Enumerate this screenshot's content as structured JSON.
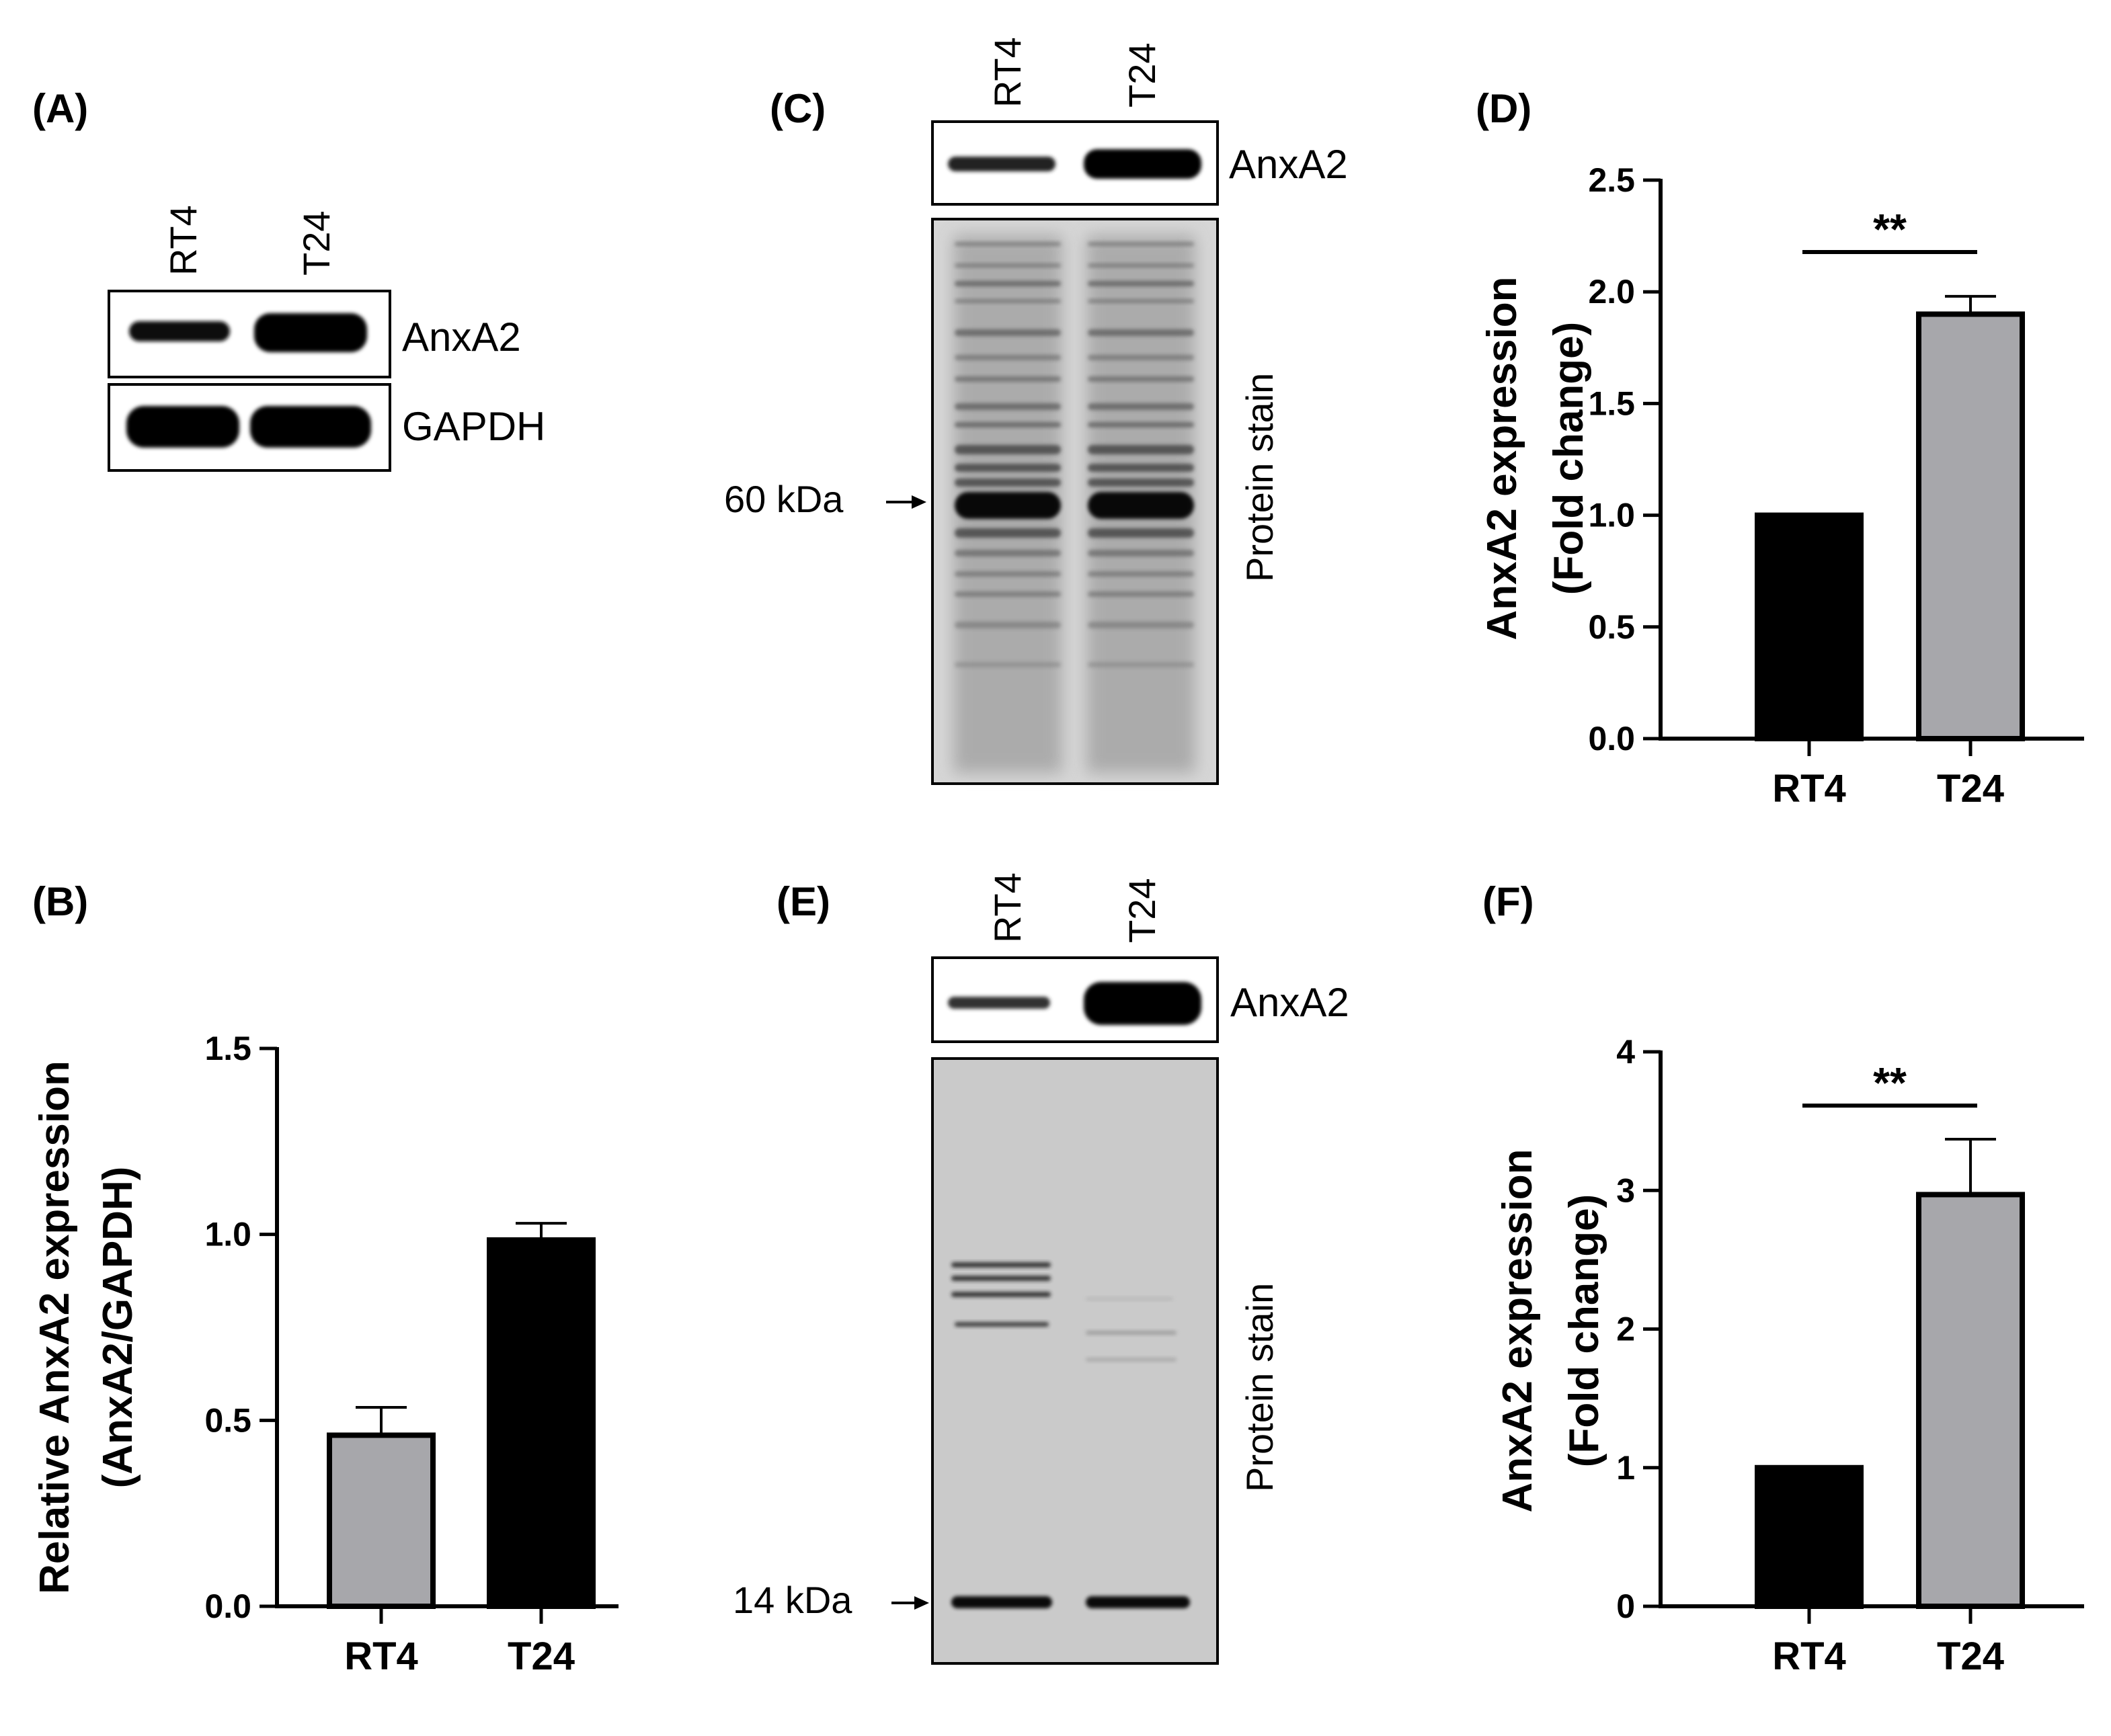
{
  "panels": {
    "A": {
      "letter": "(A)",
      "lanes": [
        "RT4",
        "T24"
      ],
      "blots": [
        "AnxA2",
        "GAPDH"
      ]
    },
    "B": {
      "letter": "(B)"
    },
    "C": {
      "letter": "(C)",
      "lanes": [
        "RT4",
        "T24"
      ],
      "blot_label": "AnxA2",
      "stain_label": "Protein stain",
      "marker": "60 kDa"
    },
    "D": {
      "letter": "(D)"
    },
    "E": {
      "letter": "(E)",
      "lanes": [
        "RT4",
        "T24"
      ],
      "blot_label": "AnxA2",
      "stain_label": "Protein stain",
      "marker": "14 kDa"
    },
    "F": {
      "letter": "(F)"
    }
  },
  "chart_data": [
    {
      "panel": "B",
      "type": "bar",
      "categories": [
        "RT4",
        "T24"
      ],
      "values": [
        0.46,
        0.985
      ],
      "errors": [
        0.075,
        0.045
      ],
      "colors": [
        "#a7a7ab",
        "#000000"
      ],
      "ylabel_lines": [
        "Relative AnxA2 expression",
        "(AnxA2/GAPDH)"
      ],
      "yticks": [
        "0.0",
        "0.5",
        "1.0",
        "1.5"
      ],
      "ylim": [
        0,
        1.5
      ],
      "significance": ""
    },
    {
      "panel": "D",
      "type": "bar",
      "categories": [
        "RT4",
        "T24"
      ],
      "values": [
        1.0,
        1.9
      ],
      "errors": [
        0,
        0.08
      ],
      "colors": [
        "#000000",
        "#a7a7ab"
      ],
      "ylabel_lines": [
        "AnxA2 expression",
        "(Fold change)"
      ],
      "yticks": [
        "0.0",
        "0.5",
        "1.0",
        "1.5",
        "2.0",
        "2.5"
      ],
      "ylim": [
        0,
        2.5
      ],
      "significance": "**"
    },
    {
      "panel": "F",
      "type": "bar",
      "categories": [
        "RT4",
        "T24"
      ],
      "values": [
        1.0,
        2.97
      ],
      "errors": [
        0,
        0.4
      ],
      "colors": [
        "#000000",
        "#a7a7ab"
      ],
      "ylabel_lines": [
        "AnxA2 expression",
        "(Fold change)"
      ],
      "yticks": [
        "0",
        "1",
        "2",
        "3",
        "4"
      ],
      "ylim": [
        0,
        4
      ],
      "significance": "**"
    }
  ]
}
